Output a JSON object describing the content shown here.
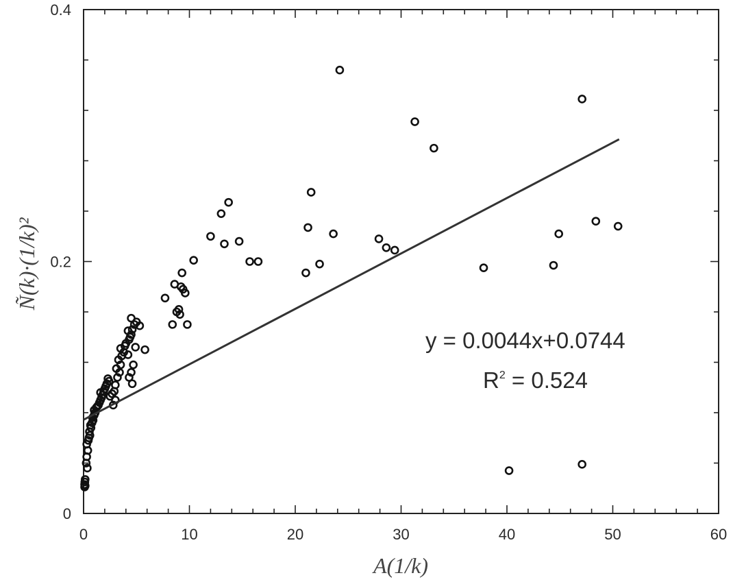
{
  "chart_data": {
    "type": "scatter",
    "title": "",
    "xlabel": "A(1/k)",
    "ylabel": "Ñ(k)·(1/k)²",
    "xlim": [
      0,
      60
    ],
    "ylim": [
      0,
      0.4
    ],
    "x_ticks": [
      "0",
      "10",
      "20",
      "30",
      "40",
      "50",
      "60"
    ],
    "x_tick_values": [
      0,
      10,
      20,
      30,
      40,
      50,
      60
    ],
    "y_ticks": [
      "0",
      "0.2",
      "0.4"
    ],
    "y_tick_values": [
      0,
      0.2,
      0.4
    ],
    "grid": false,
    "trendline": {
      "slope": 0.0044,
      "intercept": 0.0744,
      "x_range": [
        0,
        50.6
      ]
    },
    "equation_text": "y = 0.0044x+0.0744",
    "r2_label": "R",
    "r2_value_text": " = 0.524",
    "r2_exponent": "2",
    "points": [
      [
        0.1,
        0.021
      ],
      [
        0.1,
        0.023
      ],
      [
        0.12,
        0.025
      ],
      [
        0.15,
        0.027
      ],
      [
        0.15,
        0.022
      ],
      [
        0.25,
        0.04
      ],
      [
        0.35,
        0.036
      ],
      [
        0.3,
        0.045
      ],
      [
        0.4,
        0.05
      ],
      [
        0.3,
        0.055
      ],
      [
        0.45,
        0.058
      ],
      [
        0.5,
        0.06
      ],
      [
        0.6,
        0.062
      ],
      [
        0.55,
        0.065
      ],
      [
        0.7,
        0.068
      ],
      [
        0.65,
        0.07
      ],
      [
        0.8,
        0.072
      ],
      [
        0.9,
        0.074
      ],
      [
        0.85,
        0.076
      ],
      [
        1.0,
        0.078
      ],
      [
        1.1,
        0.08
      ],
      [
        1.0,
        0.082
      ],
      [
        1.2,
        0.084
      ],
      [
        1.3,
        0.085
      ],
      [
        1.4,
        0.086
      ],
      [
        1.5,
        0.088
      ],
      [
        1.6,
        0.09
      ],
      [
        1.7,
        0.092
      ],
      [
        1.8,
        0.094
      ],
      [
        1.6,
        0.096
      ],
      [
        1.9,
        0.097
      ],
      [
        2.0,
        0.099
      ],
      [
        2.1,
        0.101
      ],
      [
        2.2,
        0.103
      ],
      [
        2.4,
        0.105
      ],
      [
        2.3,
        0.107
      ],
      [
        2.5,
        0.093
      ],
      [
        2.7,
        0.095
      ],
      [
        2.9,
        0.097
      ],
      [
        3.0,
        0.102
      ],
      [
        3.2,
        0.108
      ],
      [
        3.4,
        0.112
      ],
      [
        3.1,
        0.115
      ],
      [
        3.5,
        0.118
      ],
      [
        3.3,
        0.122
      ],
      [
        3.6,
        0.125
      ],
      [
        3.8,
        0.128
      ],
      [
        3.5,
        0.131
      ],
      [
        3.9,
        0.133
      ],
      [
        4.0,
        0.135
      ],
      [
        4.2,
        0.126
      ],
      [
        4.3,
        0.138
      ],
      [
        4.4,
        0.14
      ],
      [
        4.5,
        0.142
      ],
      [
        4.2,
        0.145
      ],
      [
        4.6,
        0.146
      ],
      [
        4.8,
        0.15
      ],
      [
        4.5,
        0.155
      ],
      [
        5.0,
        0.152
      ],
      [
        5.3,
        0.149
      ],
      [
        4.3,
        0.108
      ],
      [
        4.5,
        0.112
      ],
      [
        4.6,
        0.103
      ],
      [
        4.7,
        0.118
      ],
      [
        4.9,
        0.132
      ],
      [
        5.8,
        0.13
      ],
      [
        3.0,
        0.09
      ],
      [
        2.8,
        0.086
      ],
      [
        7.7,
        0.171
      ],
      [
        8.4,
        0.15
      ],
      [
        8.6,
        0.182
      ],
      [
        8.8,
        0.16
      ],
      [
        9.0,
        0.162
      ],
      [
        9.1,
        0.158
      ],
      [
        9.2,
        0.18
      ],
      [
        9.4,
        0.178
      ],
      [
        9.6,
        0.175
      ],
      [
        9.3,
        0.191
      ],
      [
        9.8,
        0.15
      ],
      [
        10.4,
        0.201
      ],
      [
        12.0,
        0.22
      ],
      [
        13.0,
        0.238
      ],
      [
        13.3,
        0.214
      ],
      [
        13.7,
        0.247
      ],
      [
        14.7,
        0.216
      ],
      [
        15.7,
        0.2
      ],
      [
        16.5,
        0.2
      ],
      [
        21.0,
        0.191
      ],
      [
        21.2,
        0.227
      ],
      [
        21.5,
        0.255
      ],
      [
        22.3,
        0.198
      ],
      [
        23.6,
        0.222
      ],
      [
        24.2,
        0.352
      ],
      [
        27.9,
        0.218
      ],
      [
        28.6,
        0.211
      ],
      [
        29.4,
        0.209
      ],
      [
        31.3,
        0.311
      ],
      [
        33.1,
        0.29
      ],
      [
        37.8,
        0.195
      ],
      [
        40.2,
        0.034
      ],
      [
        44.4,
        0.197
      ],
      [
        44.9,
        0.222
      ],
      [
        47.1,
        0.039
      ],
      [
        47.1,
        0.329
      ],
      [
        48.4,
        0.232
      ],
      [
        50.5,
        0.228
      ]
    ]
  }
}
